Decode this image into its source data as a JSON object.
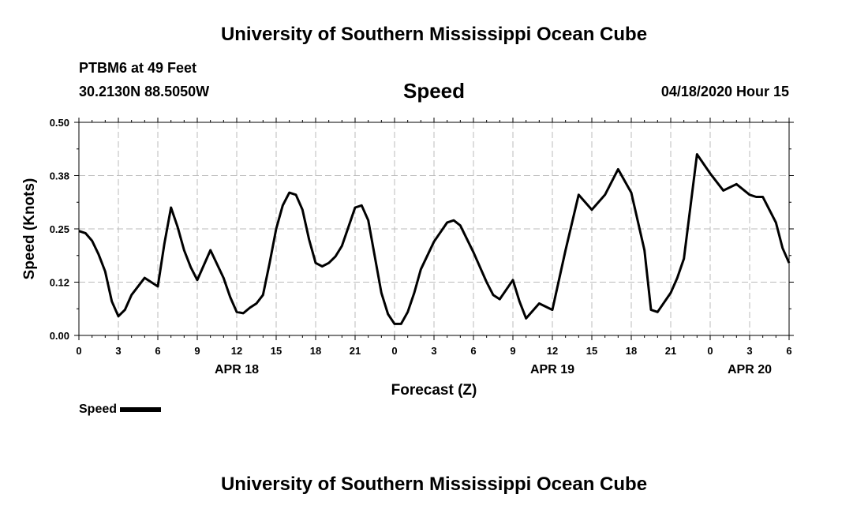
{
  "header": {
    "title_top": "University of Southern Mississippi Ocean Cube",
    "station": "PTBM6 at 49 Feet",
    "coords": "30.2130N 88.5050W",
    "datetime": "04/18/2020 Hour 15"
  },
  "footer": {
    "title_bottom": "University of Southern Mississippi Ocean Cube"
  },
  "legend": {
    "label": "Speed"
  },
  "colors": {
    "line": "#000000",
    "grid": "#bbbbbb"
  },
  "chart_data": {
    "type": "line",
    "title": "Speed",
    "xlabel": "Forecast (Z)",
    "ylabel": "Speed (Knots)",
    "x_unit": "hours since APR 18 00Z",
    "xlim": [
      0,
      54
    ],
    "ylim": [
      0,
      0.5
    ],
    "y_ticks": [
      0.0,
      0.125,
      0.25,
      0.375,
      0.5
    ],
    "y_tick_labels": [
      "0.00",
      "0.12",
      "0.25",
      "0.38",
      "0.50"
    ],
    "x_ticks": [
      0,
      3,
      6,
      9,
      12,
      15,
      18,
      21,
      24,
      27,
      30,
      33,
      36,
      39,
      42,
      45,
      48,
      51,
      54
    ],
    "x_tick_labels": [
      "0",
      "3",
      "6",
      "9",
      "12",
      "15",
      "18",
      "21",
      "0",
      "3",
      "6",
      "9",
      "12",
      "15",
      "18",
      "21",
      "0",
      "3",
      "6"
    ],
    "date_labels": [
      {
        "x": 12,
        "text": "APR 18"
      },
      {
        "x": 36,
        "text": "APR 19"
      },
      {
        "x": 51,
        "text": "APR 20"
      }
    ],
    "grid": true,
    "series": [
      {
        "name": "Speed",
        "x": [
          0,
          0.5,
          1,
          1.5,
          2,
          2.5,
          3,
          3.5,
          4,
          5,
          6,
          6.5,
          7,
          7.5,
          8,
          8.5,
          9,
          10,
          11,
          11.5,
          12,
          12.5,
          13,
          13.5,
          14,
          14.5,
          15,
          15.5,
          16,
          16.5,
          17,
          17.5,
          18,
          18.5,
          19,
          19.5,
          20,
          20.5,
          21,
          21.5,
          22,
          22.5,
          23,
          23.5,
          24,
          24.5,
          25,
          25.5,
          26,
          27,
          28,
          28.5,
          29,
          30,
          31,
          31.5,
          32,
          33,
          33.5,
          34,
          35,
          36,
          37,
          38,
          39,
          40,
          41,
          42,
          43,
          43.5,
          44,
          45,
          45.5,
          46,
          47,
          48,
          49,
          50,
          51,
          51.5,
          52,
          53,
          53.5,
          54
        ],
        "values": [
          0.245,
          0.24,
          0.222,
          0.19,
          0.15,
          0.08,
          0.045,
          0.06,
          0.095,
          0.135,
          0.115,
          0.215,
          0.3,
          0.255,
          0.2,
          0.16,
          0.13,
          0.2,
          0.135,
          0.09,
          0.055,
          0.052,
          0.065,
          0.075,
          0.095,
          0.17,
          0.25,
          0.305,
          0.335,
          0.33,
          0.295,
          0.225,
          0.17,
          0.162,
          0.17,
          0.185,
          0.21,
          0.255,
          0.3,
          0.305,
          0.27,
          0.185,
          0.1,
          0.05,
          0.027,
          0.027,
          0.055,
          0.1,
          0.155,
          0.22,
          0.265,
          0.27,
          0.258,
          0.195,
          0.125,
          0.095,
          0.085,
          0.13,
          0.08,
          0.04,
          0.075,
          0.06,
          0.2,
          0.33,
          0.295,
          0.33,
          0.39,
          0.335,
          0.2,
          0.06,
          0.055,
          0.1,
          0.135,
          0.18,
          0.425,
          0.38,
          0.34,
          0.355,
          0.33,
          0.325,
          0.325,
          0.265,
          0.205,
          0.17
        ]
      }
    ]
  }
}
